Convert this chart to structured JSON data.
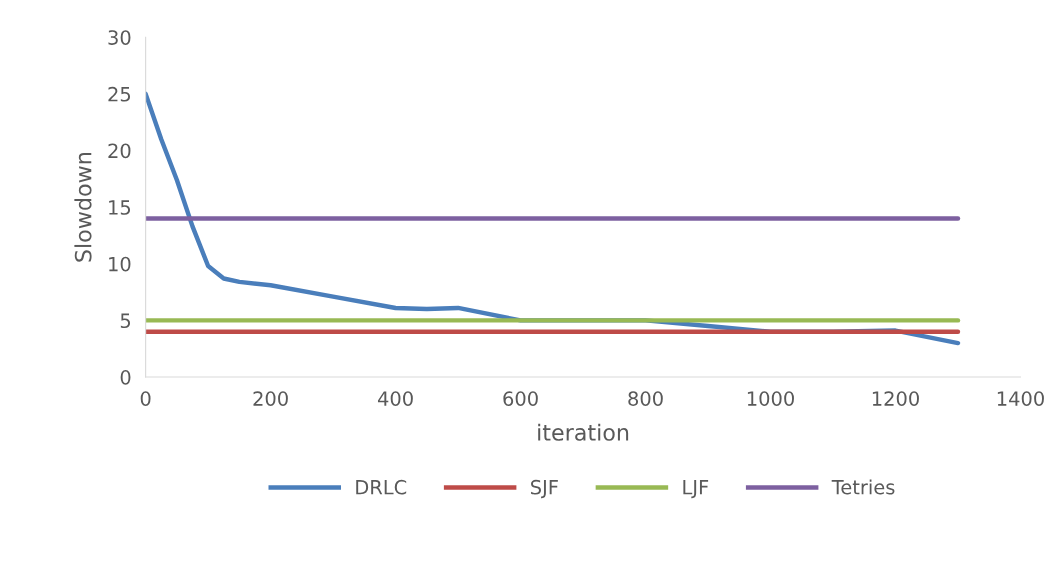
{
  "chart_data": {
    "type": "line",
    "xlabel": "iteration",
    "ylabel": "Slowdown",
    "xlim": [
      0,
      1400
    ],
    "xticks": [
      0,
      200,
      400,
      600,
      800,
      1000,
      1200,
      1400
    ],
    "ylim": [
      0,
      30
    ],
    "yticks": [
      0,
      5,
      10,
      15,
      20,
      25,
      30
    ],
    "grid": false,
    "legend": "bottom",
    "marker": "none",
    "line_style": "solid",
    "series": [
      {
        "name": "DRLC",
        "color": "#4a7ebb",
        "x": [
          0,
          25,
          50,
          75,
          100,
          125,
          150,
          200,
          300,
          400,
          450,
          500,
          600,
          700,
          800,
          900,
          1000,
          1100,
          1200,
          1300
        ],
        "values": [
          25,
          21,
          17.4,
          13.3,
          9.8,
          8.7,
          8.4,
          8.1,
          7.1,
          6.1,
          6.0,
          6.1,
          5.0,
          5.0,
          5.0,
          4.5,
          4.0,
          4.0,
          4.1,
          3.0
        ]
      },
      {
        "name": "SJF",
        "color": "#be4b48",
        "x": [
          0,
          1300
        ],
        "values": [
          4,
          4
        ]
      },
      {
        "name": "LJF",
        "color": "#98b954",
        "x": [
          0,
          1300
        ],
        "values": [
          5,
          5
        ]
      },
      {
        "name": "Tetries",
        "color": "#7d60a0",
        "x": [
          0,
          1300
        ],
        "values": [
          14,
          14
        ]
      }
    ]
  }
}
